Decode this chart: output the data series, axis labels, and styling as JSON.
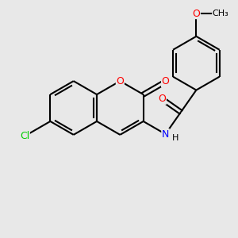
{
  "background_color": "#e8e8e8",
  "bond_color": "#000000",
  "bond_width": 1.5,
  "atom_colors": {
    "O": "#ff0000",
    "N": "#0000ff",
    "Cl": "#00cc00",
    "C": "#000000",
    "H": "#000000"
  },
  "font_size": 9,
  "fig_size": [
    3.0,
    3.0
  ],
  "dpi": 100
}
